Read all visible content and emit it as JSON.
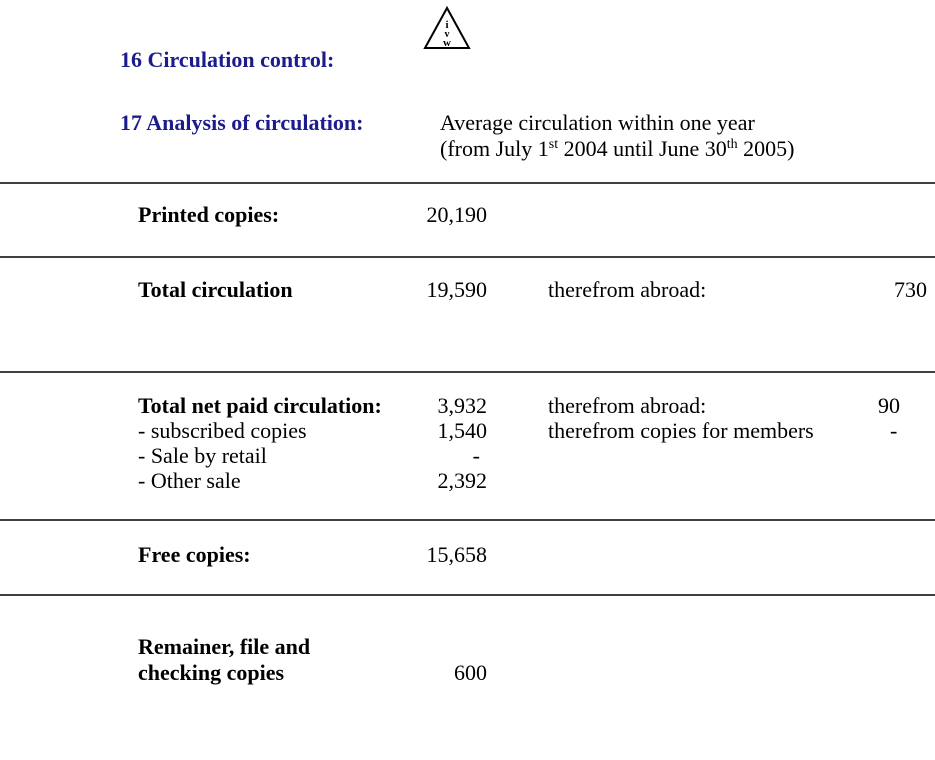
{
  "logo": {
    "letters": [
      "i",
      "v",
      "w"
    ]
  },
  "sections": {
    "circulation_control": {
      "heading": "16 Circulation control:"
    },
    "analysis": {
      "heading": "17 Analysis of circulation:",
      "line1": "Average circulation within one year",
      "line2": [
        "(from July 1",
        "st",
        " 2004 until June 30",
        "th",
        " 2005)"
      ]
    }
  },
  "rows": [
    {
      "label": "Printed copies:",
      "value": "20,190"
    },
    {
      "label": "Total circulation",
      "value": "19,590",
      "note": "therefrom abroad:",
      "note_value": "730"
    },
    {
      "label": "Total net paid circulation:",
      "value": "3,932",
      "note": "therefrom abroad:",
      "note_value": "90",
      "sub": [
        {
          "label": "- subscribed copies",
          "value": "1,540",
          "note": "therefrom copies for members",
          "note_value": "-"
        },
        {
          "label": "- Sale by retail",
          "value": "-"
        },
        {
          "label": "- Other sale",
          "value": "2,392"
        }
      ]
    },
    {
      "label": "Free copies:",
      "value": "15,658"
    },
    {
      "label": [
        "Remainer, file and",
        "checking copies"
      ],
      "value": "600"
    }
  ]
}
